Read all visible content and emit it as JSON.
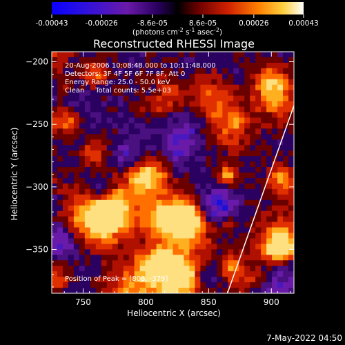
{
  "colorbar": {
    "tick_labels": [
      "-0.00043",
      "-0.00026",
      "-8.6e-05",
      "8.6e-05",
      "0.00026",
      "0.00043"
    ],
    "tick_values": [
      -0.00043,
      -0.00026,
      -8.6e-05,
      8.6e-05,
      0.00026,
      0.00043
    ],
    "range": [
      -0.00043,
      0.00043
    ],
    "unit_prefix": "(photons cm",
    "unit_exp1": "-2",
    "unit_mid": " s",
    "unit_exp2": "-1",
    "unit_mid2": " asec",
    "unit_exp3": "-2",
    "unit_suffix": ")"
  },
  "chart_data": {
    "type": "heatmap",
    "title": "Reconstructed RHESSI Image",
    "xlabel": "Heliocentric X (arcsec)",
    "ylabel": "Heliocentric Y (arcsec)",
    "xlim": [
      725,
      918
    ],
    "ylim": [
      -385,
      -192
    ],
    "x_ticks": [
      750,
      800,
      850,
      900
    ],
    "y_ticks": [
      -200,
      -250,
      -300,
      -350
    ],
    "x_tick_labels": [
      "750",
      "800",
      "850",
      "900"
    ],
    "y_tick_labels": [
      "−200",
      "−250",
      "−300",
      "−350"
    ],
    "annotations": [
      "20-Aug-2006 10:08:48.000 to 10:11:48.000",
      "Detectors: 3F 4F 5F 6F 7F 8F, Att 0",
      "Energy Range: 25.0 - 50.0 keV",
      "Clean     Total counts: 5.5e+03"
    ],
    "peak_label": "Position of Peak = [808, -379]",
    "peak": [
      808,
      -379
    ],
    "limb_line": [
      [
        865,
        -385
      ],
      [
        918,
        -235
      ]
    ],
    "grid": false
  },
  "footer": {
    "date": "7-May-2022 04:50"
  }
}
